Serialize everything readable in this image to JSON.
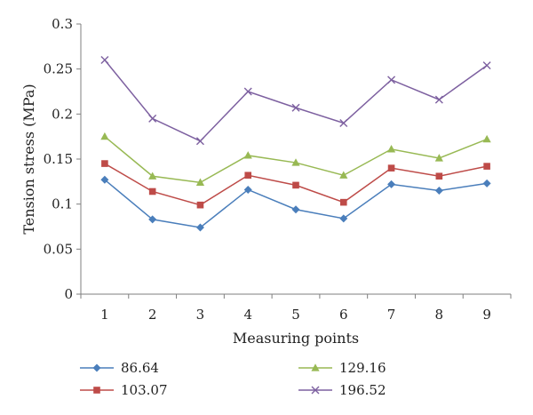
{
  "chart_data": {
    "type": "line",
    "xlabel": "Measuring points",
    "ylabel": "Tension stress (MPa)",
    "categories": [
      "1",
      "2",
      "3",
      "4",
      "5",
      "6",
      "7",
      "8",
      "9"
    ],
    "ylim": [
      0,
      0.3
    ],
    "yticks": [
      "0",
      "0.05",
      "0.1",
      "0.15",
      "0.2",
      "0.25",
      "0.3"
    ],
    "grid": false,
    "legend_position": "bottom",
    "series": [
      {
        "name": "86.64",
        "color": "#4a7ebb",
        "marker": "diamond",
        "values": [
          0.127,
          0.083,
          0.074,
          0.116,
          0.094,
          0.084,
          0.122,
          0.115,
          0.123
        ]
      },
      {
        "name": "103.07",
        "color": "#be4b48",
        "marker": "square",
        "values": [
          0.145,
          0.114,
          0.099,
          0.132,
          0.121,
          0.102,
          0.14,
          0.131,
          0.142
        ]
      },
      {
        "name": "129.16",
        "color": "#98b954",
        "marker": "triangle",
        "values": [
          0.175,
          0.131,
          0.124,
          0.154,
          0.146,
          0.132,
          0.161,
          0.151,
          0.172
        ]
      },
      {
        "name": "196.52",
        "color": "#7d60a0",
        "marker": "x",
        "values": [
          0.26,
          0.195,
          0.17,
          0.225,
          0.207,
          0.19,
          0.238,
          0.216,
          0.254
        ]
      }
    ]
  }
}
